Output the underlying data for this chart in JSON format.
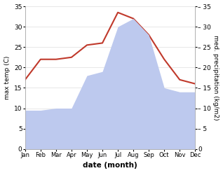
{
  "months": [
    "Jan",
    "Feb",
    "Mar",
    "Apr",
    "May",
    "Jun",
    "Jul",
    "Aug",
    "Sep",
    "Oct",
    "Nov",
    "Dec"
  ],
  "temperature": [
    17,
    22,
    22,
    22.5,
    25.5,
    26,
    33.5,
    32,
    28,
    22,
    17,
    16
  ],
  "precipitation": [
    9.5,
    9.5,
    10,
    10,
    18,
    19,
    30,
    32,
    28,
    15,
    14,
    14
  ],
  "temp_color": "#c0392b",
  "precip_fill_color": "#bdc9ee",
  "temp_ylim": [
    0,
    35
  ],
  "precip_ylim": [
    0,
    35
  ],
  "xlabel": "date (month)",
  "ylabel_left": "max temp (C)",
  "ylabel_right": "med. precipitation (kg/m2)",
  "bg_color": "#ffffff",
  "grid_color": "#dddddd",
  "yticks": [
    0,
    5,
    10,
    15,
    20,
    25,
    30,
    35
  ]
}
